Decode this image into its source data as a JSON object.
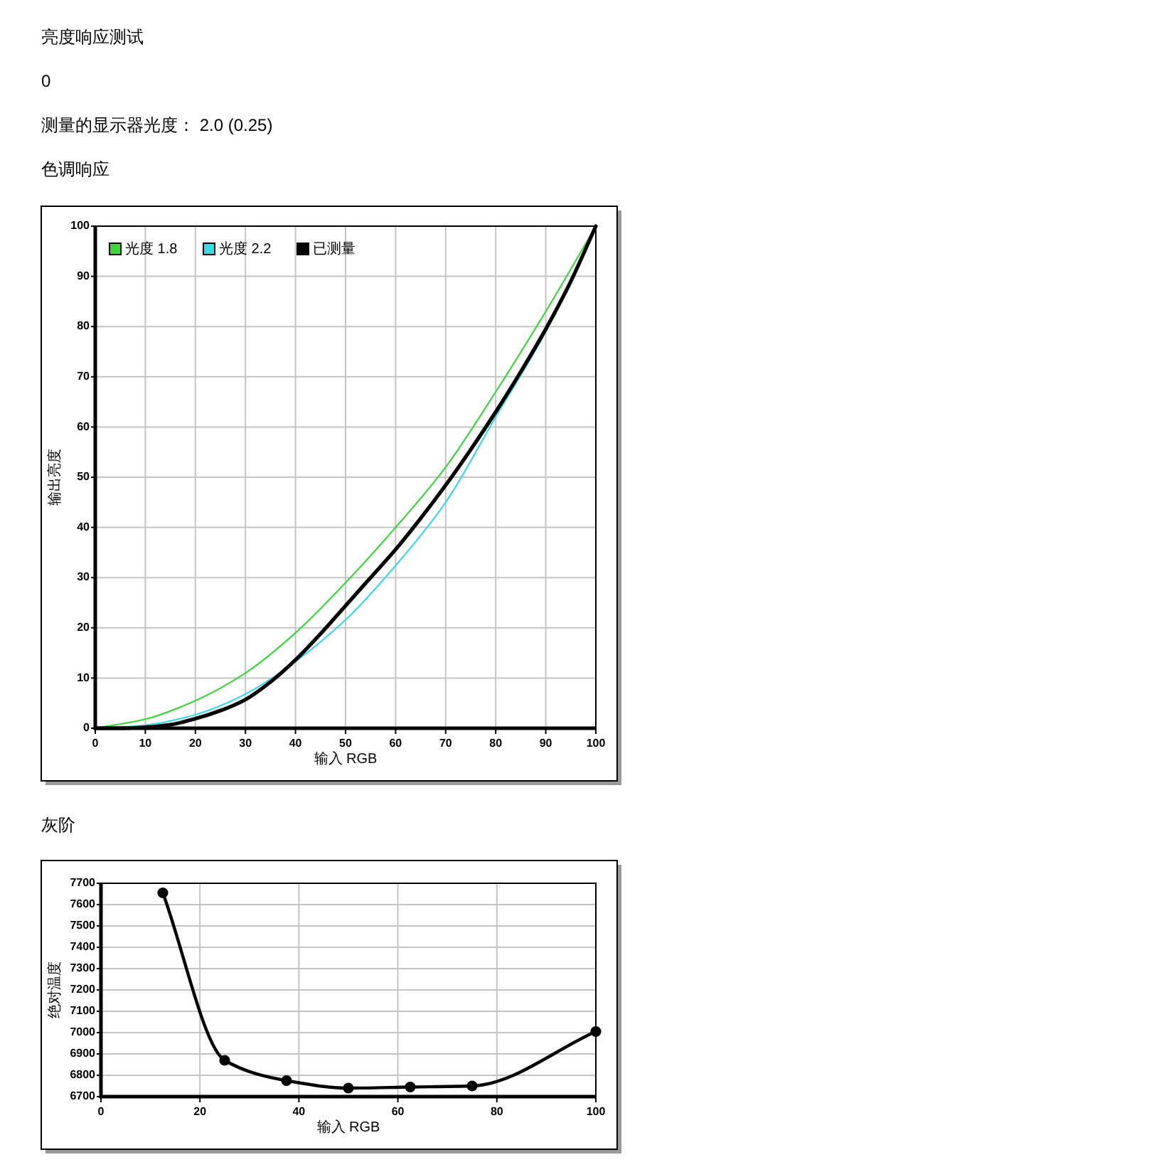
{
  "chart_data": [
    {
      "type": "line",
      "title": "色调响应",
      "annotations": [
        "亮度响应测试",
        "0",
        "测量的显示器光度： 2.0 (0.25)"
      ],
      "xlabel": "输入 RGB",
      "ylabel": "输出亮度",
      "x": [
        0,
        10,
        20,
        30,
        40,
        50,
        60,
        70,
        80,
        90,
        100
      ],
      "series": [
        {
          "name": "光度 1.8",
          "color": "#3fd43f",
          "values": [
            0,
            1.8,
            5.5,
            11,
            19,
            29,
            40,
            52,
            67,
            83,
            100
          ]
        },
        {
          "name": "光度 2.2",
          "color": "#3fd6e6",
          "values": [
            0,
            0.6,
            2.7,
            6.8,
            13.3,
            21.6,
            32.4,
            45,
            62,
            79,
            100
          ]
        },
        {
          "name": "已测量",
          "color": "#000000",
          "x": [
            0,
            5,
            10,
            15,
            20,
            25,
            30,
            35,
            40,
            45,
            50,
            55,
            60,
            65,
            70,
            75,
            80,
            85,
            90,
            95,
            100
          ],
          "values": [
            0,
            0,
            0.2,
            0.7,
            1.9,
            3.5,
            5.7,
            9.2,
            13.6,
            18.8,
            24.4,
            30,
            35.6,
            41.8,
            48.4,
            55.5,
            63,
            71,
            79.5,
            89,
            100
          ]
        }
      ],
      "xlim": [
        0,
        100
      ],
      "ylim": [
        0,
        100
      ],
      "xticks": [
        0,
        10,
        20,
        30,
        40,
        50,
        60,
        70,
        80,
        90,
        100
      ],
      "yticks": [
        0,
        10,
        20,
        30,
        40,
        50,
        60,
        70,
        80,
        90,
        100
      ],
      "grid": true,
      "legend": "top left"
    },
    {
      "type": "line",
      "title": "灰阶",
      "xlabel": "输入 RGB",
      "ylabel": "绝对温度",
      "x": [
        12.5,
        25,
        37.5,
        50,
        62.5,
        75,
        100
      ],
      "series": [
        {
          "color": "#000000",
          "values": [
            7655,
            6870,
            6775,
            6740,
            6745,
            6750,
            7005
          ]
        }
      ],
      "xlim": [
        0,
        100
      ],
      "ylim": [
        6700,
        7700
      ],
      "xticks": [
        0,
        20,
        40,
        60,
        80,
        100
      ],
      "yticks": [
        6700,
        6800,
        6900,
        7000,
        7100,
        7200,
        7300,
        7400,
        7500,
        7600,
        7700
      ],
      "grid": true,
      "marker": "circle"
    }
  ]
}
